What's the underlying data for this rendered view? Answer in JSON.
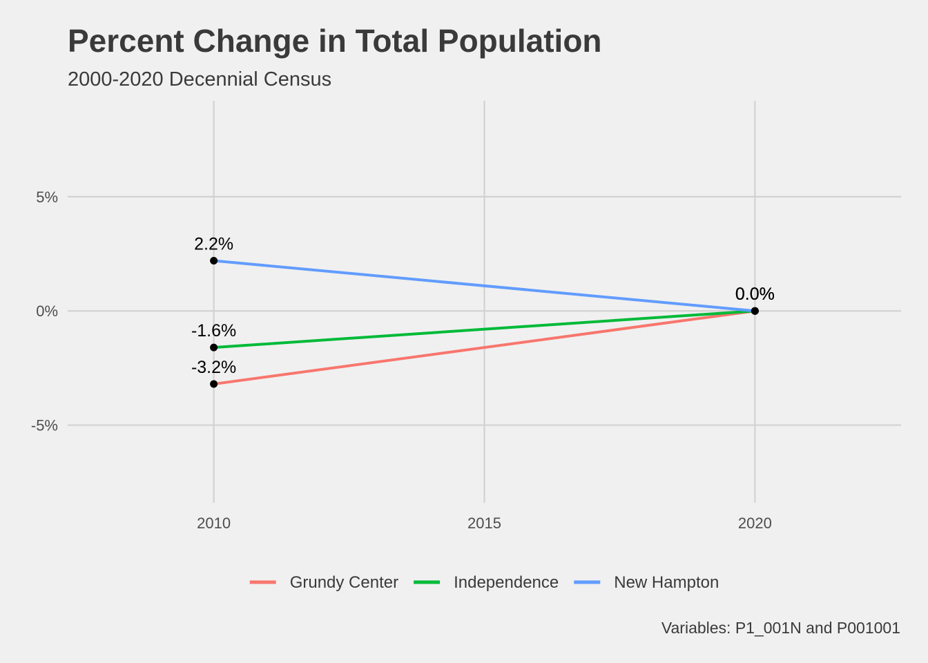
{
  "chart_data": {
    "type": "line",
    "title": "Percent Change in Total Population",
    "subtitle": "2000-2020 Decennial Census",
    "caption": "Variables: P1_001N and P001001",
    "xlabel": "",
    "ylabel": "",
    "x_ticks": [
      "2010",
      "2015",
      "2020"
    ],
    "x_tick_values": [
      2010,
      2015,
      2020
    ],
    "y_ticks": [
      "-5%",
      "0%",
      "5%"
    ],
    "y_tick_values": [
      -5,
      0,
      5
    ],
    "xlim": [
      2007.3,
      2022.7
    ],
    "ylim": [
      -8.4,
      9.2
    ],
    "grid": true,
    "legend_position": "bottom",
    "x": [
      2010,
      2020
    ],
    "series": [
      {
        "name": "Grundy Center",
        "color": "#f8766d",
        "values": [
          -3.2,
          0.0
        ],
        "labels": [
          "-3.2%",
          "0.0%"
        ]
      },
      {
        "name": "Independence",
        "color": "#00ba38",
        "values": [
          -1.6,
          0.0
        ],
        "labels": [
          "-1.6%",
          "0.0%"
        ]
      },
      {
        "name": "New Hampton",
        "color": "#619cff",
        "values": [
          2.2,
          0.0
        ],
        "labels": [
          "2.2%",
          "0.0%"
        ]
      }
    ],
    "point_color": "#000000"
  }
}
